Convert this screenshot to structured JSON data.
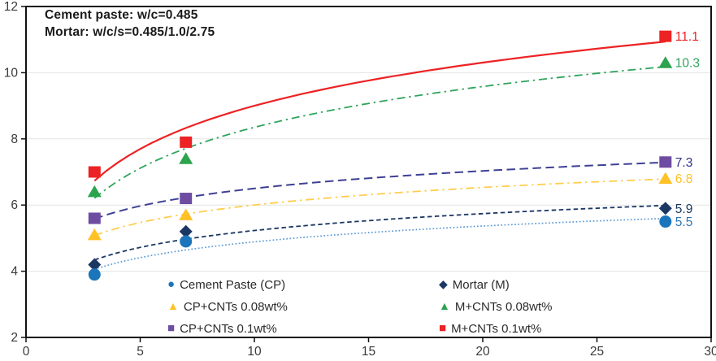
{
  "chart_data": {
    "type": "line",
    "title": "",
    "xlabel": "",
    "ylabel": "",
    "annotation": [
      "Cement paste: w/c=0.485",
      "Mortar: w/c/s=0.485/1.0/2.75"
    ],
    "x": [
      3,
      7,
      28
    ],
    "xlim": [
      0,
      30
    ],
    "ylim": [
      2,
      12
    ],
    "x_ticks": [
      0,
      5,
      10,
      15,
      20,
      25,
      30
    ],
    "y_ticks": [
      2,
      4,
      6,
      8,
      10,
      12
    ],
    "grid": "horizontal-light",
    "legend_position": "inside-bottom-center",
    "trendline": "logarithmic",
    "series": [
      {
        "name": "Cement Paste (CP)",
        "values": [
          3.9,
          4.9,
          5.5
        ],
        "end_label": "5.5",
        "marker": "circle",
        "marker_color": "#1B75BB",
        "line_color": "#5B9BD5",
        "line_style": "dotted",
        "label_color": "#2E75B6"
      },
      {
        "name": "Mortar (M)",
        "values": [
          4.2,
          5.2,
          5.9
        ],
        "end_label": "5.9",
        "marker": "diamond",
        "marker_color": "#1B3764",
        "line_color": "#1B3764",
        "line_style": "dash",
        "label_color": "#17375E"
      },
      {
        "name": "CP+CNTs 0.08wt%",
        "values": [
          5.1,
          5.7,
          6.8
        ],
        "end_label": "6.8",
        "marker": "triangle",
        "marker_color": "#FFC125",
        "line_color": "#FFCD4D",
        "line_style": "dashdot",
        "label_color": "#FFC125"
      },
      {
        "name": "M+CNTs 0.08wt%",
        "values": [
          6.4,
          7.4,
          10.3
        ],
        "end_label": "10.3",
        "marker": "triangle",
        "marker_color": "#2CA34D",
        "line_color": "#2FA45C",
        "line_style": "dashdot",
        "label_color": "#2FA45C"
      },
      {
        "name": "CP+CNTs 0.1wt%",
        "values": [
          5.6,
          6.2,
          7.3
        ],
        "end_label": "7.3",
        "marker": "square",
        "marker_color": "#6D4CA1",
        "line_color": "#3E4095",
        "line_style": "longdash",
        "label_color": "#303285"
      },
      {
        "name": "M+CNTs 0.1wt%",
        "values": [
          7.0,
          7.9,
          11.1
        ],
        "end_label": "11.1",
        "marker": "square",
        "marker_color": "#ED2224",
        "line_color": "#ED2224",
        "line_style": "solid",
        "label_color": "#ED2224"
      }
    ],
    "legend_columns": [
      [
        0,
        2,
        4
      ],
      [
        1,
        3,
        5
      ]
    ]
  }
}
